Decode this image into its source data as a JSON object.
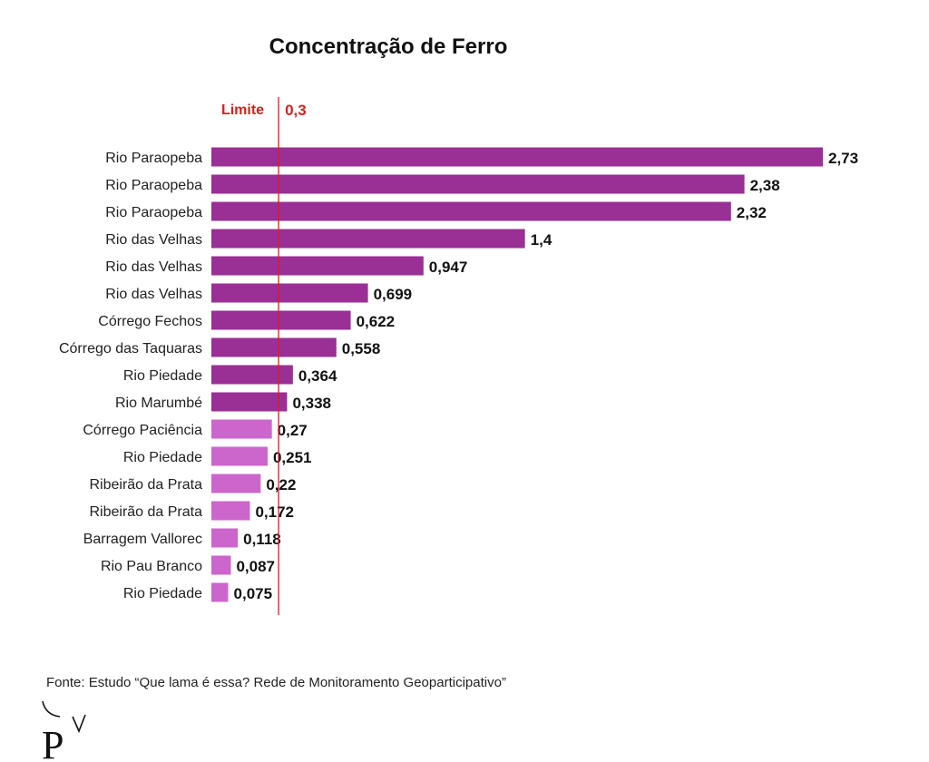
{
  "chart_data": {
    "type": "bar",
    "orientation": "horizontal",
    "title": "Concentração de Ferro",
    "xlabel": "",
    "ylabel": "",
    "xlim": [
      0,
      2.73
    ],
    "grid": false,
    "categories": [
      "Rio Paraopeba",
      "Rio Paraopeba",
      "Rio Paraopeba",
      "Rio das Velhas",
      "Rio das Velhas",
      "Rio das Velhas",
      "Córrego Fechos",
      "Córrego das Taquaras",
      "Rio Piedade",
      "Rio Marumbé",
      "Córrego Paciência",
      "Rio Piedade",
      "Ribeirão da Prata",
      "Ribeirão da Prata",
      "Barragem Vallorec",
      "Rio Pau Branco",
      "Rio Piedade"
    ],
    "values": [
      2.73,
      2.38,
      2.32,
      1.4,
      0.947,
      0.699,
      0.622,
      0.558,
      0.364,
      0.338,
      0.27,
      0.251,
      0.22,
      0.172,
      0.118,
      0.087,
      0.075
    ],
    "value_labels": [
      "2,73",
      "2,38",
      "2,32",
      "1,4",
      "0,947",
      "0,699",
      "0,622",
      "0,558",
      "0,364",
      "0,338",
      "0,27",
      "0,251",
      "0,22",
      "0,172",
      "0,118",
      "0,087",
      "0,075"
    ],
    "limit": {
      "label": "Limite",
      "value": 0.3,
      "value_label": "0,3",
      "color": "#d42020"
    },
    "colors": {
      "above_limit": "#9a2f96",
      "below_limit": "#cc66cc"
    }
  },
  "source": "Fonte: Estudo “Que lama é essa? Rede de Monitoramento Geoparticipativo”",
  "logo": {
    "icon": "p-logo-icon",
    "letter": "P"
  }
}
